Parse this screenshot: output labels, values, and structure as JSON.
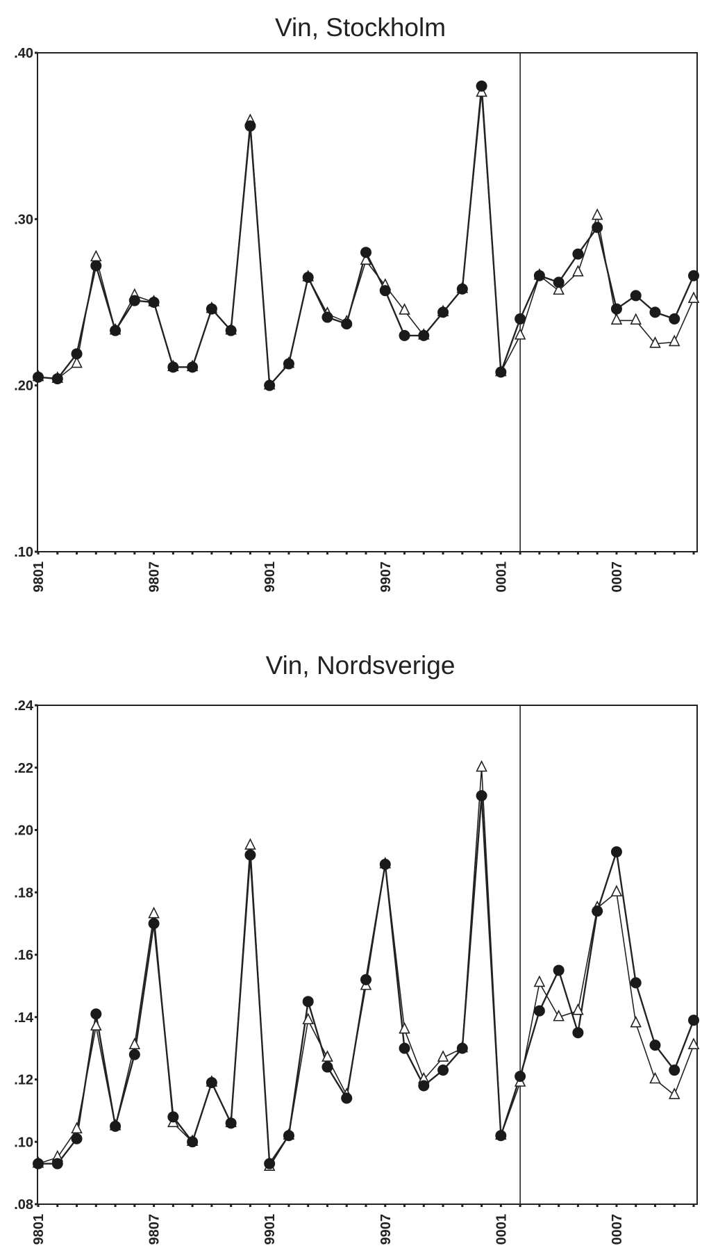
{
  "chart_data": [
    {
      "type": "line",
      "title": "Vin, Stockholm",
      "xlabel": "",
      "ylabel": "",
      "ylim": [
        0.1,
        0.4
      ],
      "yticks": [
        ".10",
        ".20",
        ".30",
        ".40"
      ],
      "ytick_values": [
        0.1,
        0.2,
        0.3,
        0.4
      ],
      "xtick_labels": [
        "9801",
        "9807",
        "9901",
        "9907",
        "0001",
        "0007"
      ],
      "xtick_indices": [
        0,
        6,
        12,
        18,
        24,
        30
      ],
      "n_points": 35,
      "vertical_line_index": 25,
      "series": [
        {
          "name": "circle",
          "marker": "filled-circle",
          "values": [
            0.205,
            0.204,
            0.219,
            0.272,
            0.233,
            0.251,
            0.25,
            0.211,
            0.211,
            0.246,
            0.233,
            0.356,
            0.2,
            0.213,
            0.265,
            0.241,
            0.237,
            0.28,
            0.257,
            0.23,
            0.23,
            0.244,
            0.258,
            0.38,
            0.208,
            0.24,
            0.266,
            0.262,
            0.279,
            0.295,
            0.246,
            0.254,
            0.244,
            0.24,
            0.266
          ]
        },
        {
          "name": "triangle",
          "marker": "open-triangle",
          "values": [
            0.205,
            0.204,
            0.213,
            0.277,
            0.233,
            0.254,
            0.25,
            0.211,
            0.211,
            0.246,
            0.233,
            0.359,
            0.2,
            0.213,
            0.265,
            0.243,
            0.238,
            0.275,
            0.26,
            0.245,
            0.23,
            0.244,
            0.258,
            0.376,
            0.208,
            0.23,
            0.266,
            0.257,
            0.268,
            0.302,
            0.239,
            0.239,
            0.225,
            0.226,
            0.252
          ]
        }
      ]
    },
    {
      "type": "line",
      "title": "Vin, Nordsverige",
      "xlabel": "",
      "ylabel": "",
      "ylim": [
        0.08,
        0.24
      ],
      "yticks": [
        ".08",
        ".10",
        ".12",
        ".14",
        ".16",
        ".18",
        ".20",
        ".22",
        ".24"
      ],
      "ytick_values": [
        0.08,
        0.1,
        0.12,
        0.14,
        0.16,
        0.18,
        0.2,
        0.22,
        0.24
      ],
      "xtick_labels": [
        "9801",
        "9807",
        "9901",
        "9907",
        "0001",
        "0007"
      ],
      "xtick_indices": [
        0,
        6,
        12,
        18,
        24,
        30
      ],
      "n_points": 35,
      "vertical_line_index": 25,
      "series": [
        {
          "name": "circle",
          "marker": "filled-circle",
          "values": [
            0.093,
            0.093,
            0.101,
            0.141,
            0.105,
            0.128,
            0.17,
            0.108,
            0.1,
            0.119,
            0.106,
            0.192,
            0.093,
            0.102,
            0.145,
            0.124,
            0.114,
            0.152,
            0.189,
            0.13,
            0.118,
            0.123,
            0.13,
            0.211,
            0.102,
            0.121,
            0.142,
            0.155,
            0.135,
            0.174,
            0.193,
            0.151,
            0.131,
            0.123,
            0.139
          ]
        },
        {
          "name": "triangle",
          "marker": "open-triangle",
          "values": [
            0.093,
            0.095,
            0.104,
            0.137,
            0.105,
            0.131,
            0.173,
            0.106,
            0.1,
            0.119,
            0.106,
            0.195,
            0.092,
            0.102,
            0.139,
            0.127,
            0.115,
            0.15,
            0.189,
            0.136,
            0.12,
            0.127,
            0.13,
            0.22,
            0.102,
            0.119,
            0.151,
            0.14,
            0.142,
            0.175,
            0.18,
            0.138,
            0.12,
            0.115,
            0.131
          ]
        }
      ]
    }
  ]
}
